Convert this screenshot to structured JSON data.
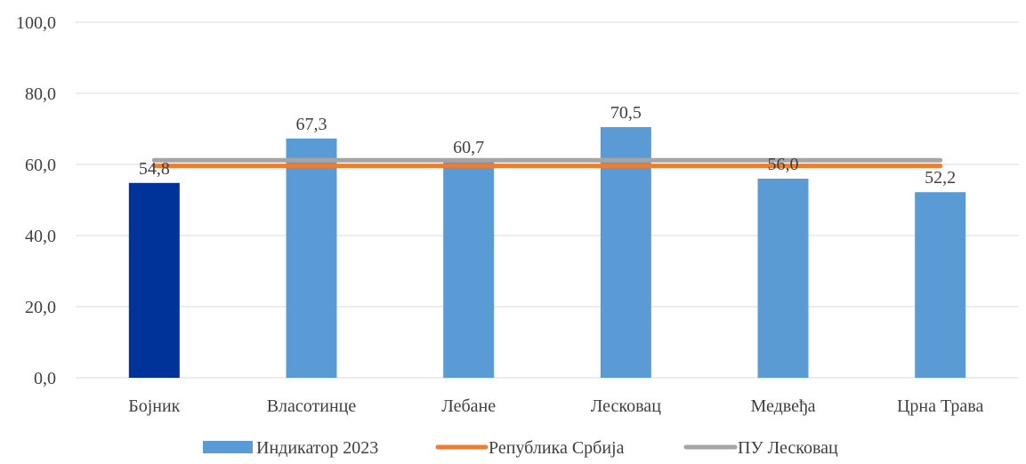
{
  "chart_data": {
    "type": "bar",
    "categories": [
      "Бојник",
      "Власотинце",
      "Лебане",
      "Лесковац",
      "Медвеђа",
      "Црна Трава"
    ],
    "series": [
      {
        "name": "Индикатор 2023",
        "type": "bar",
        "values": [
          54.8,
          67.3,
          60.7,
          70.5,
          56.0,
          52.2
        ],
        "data_labels": [
          "54,8",
          "67,3",
          "60,7",
          "70,5",
          "56,0",
          "52,2"
        ],
        "color": "#5b9bd5",
        "highlight_color": "#003399",
        "highlight_category": "Бојник"
      },
      {
        "name": "Република Србија",
        "type": "line",
        "value": 59.6,
        "color": "#ed7d31"
      },
      {
        "name": "ПУ Лесковац",
        "type": "line",
        "value": 61.2,
        "color": "#a5a5a5"
      }
    ],
    "ylim": [
      0,
      100
    ],
    "yticks": [
      "0,0",
      "20,0",
      "40,0",
      "60,0",
      "80,0",
      "100,0"
    ],
    "ytick_values": [
      0,
      20,
      40,
      60,
      80,
      100
    ],
    "grid": true,
    "legend_position": "bottom",
    "title": "",
    "xlabel": "",
    "ylabel": ""
  }
}
